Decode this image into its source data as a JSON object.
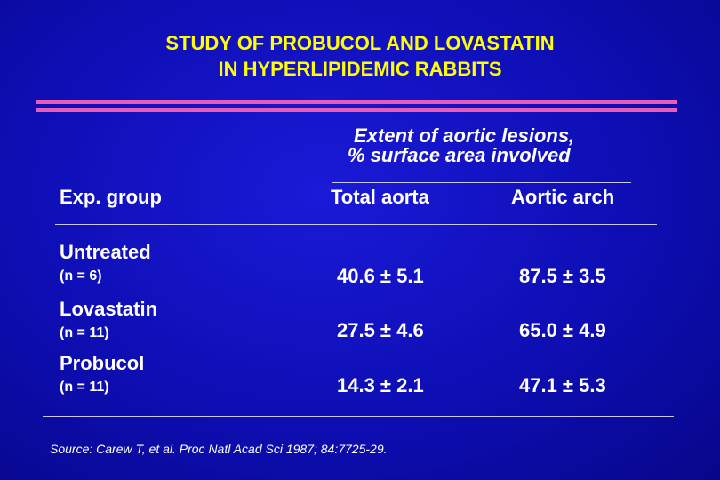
{
  "title": {
    "line1": "STUDY OF PROBUCOL AND LOVASTATIN",
    "line2": "IN HYPERLIPIDEMIC RABBITS"
  },
  "colors": {
    "title": "#ffff00",
    "accent_bar": "#e65cb7",
    "background": "#1212c8",
    "text": "#ffffff"
  },
  "table": {
    "group_header_line1": "Extent of aortic lesions,",
    "group_header_line2": "% surface area involved",
    "columns": [
      "Exp. group",
      "Total aorta",
      "Aortic arch"
    ],
    "rows": [
      {
        "name": "Untreated",
        "n": "(n = 6)",
        "total": "40.6 ± 5.1",
        "arch": "87.5 ± 3.5"
      },
      {
        "name": "Lovastatin",
        "n": "(n = 11)",
        "total": "27.5 ± 4.6",
        "arch": "65.0 ± 4.9"
      },
      {
        "name": "Probucol",
        "n": "(n = 11)",
        "total": "14.3 ± 2.1",
        "arch": "47.1 ± 5.3"
      }
    ]
  },
  "source": "Source:  Carew T, et al.  Proc Natl Acad Sci 1987; 84:7725-29."
}
